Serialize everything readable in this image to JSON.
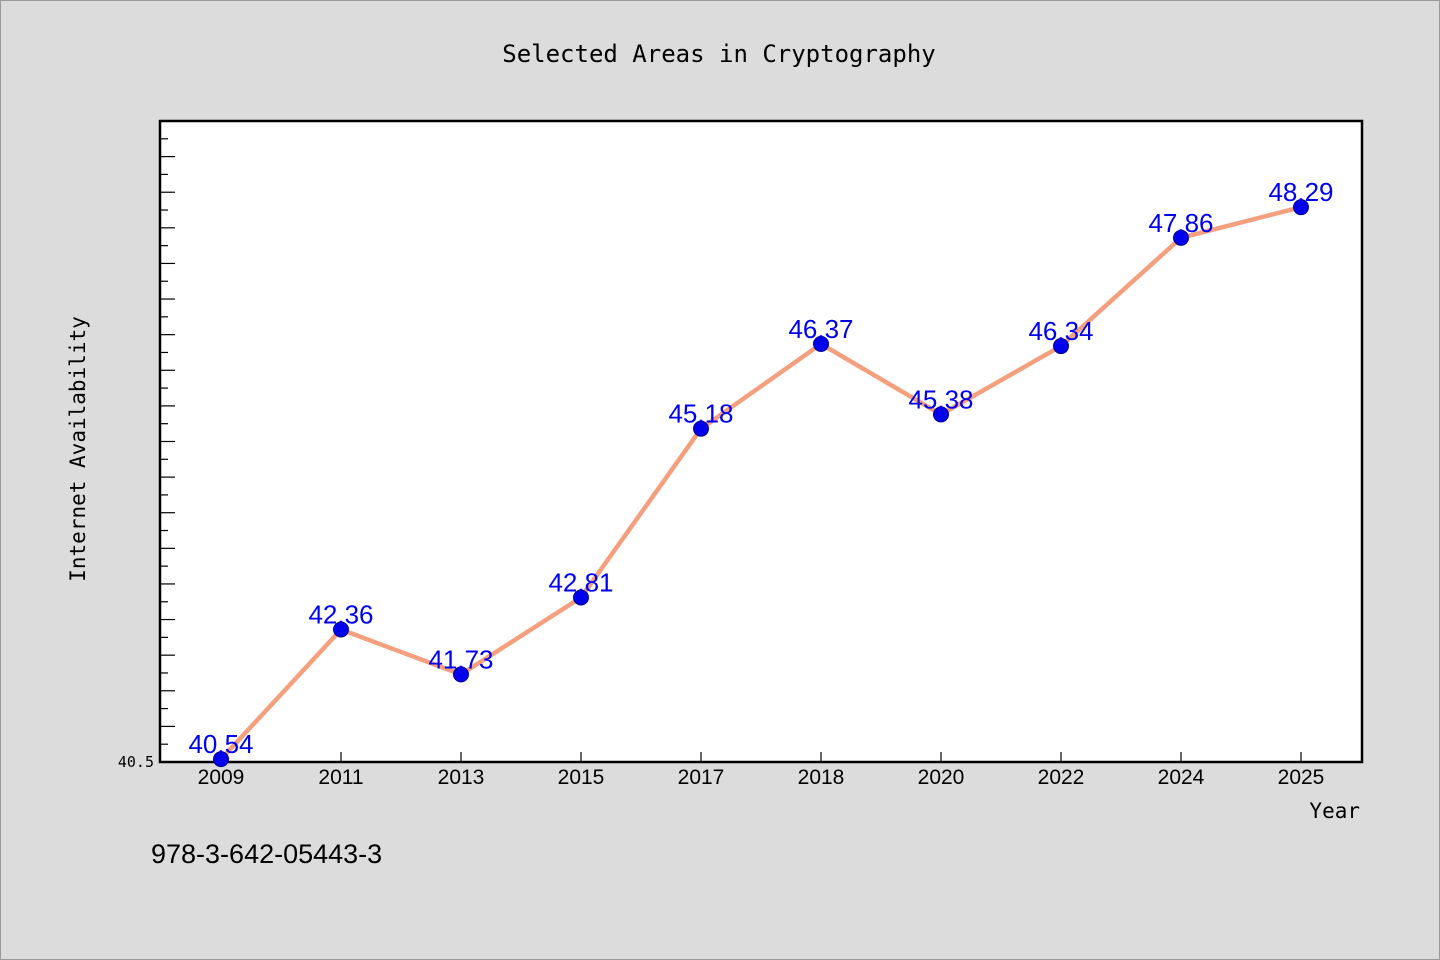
{
  "chart_data": {
    "type": "line",
    "title": "Selected Areas in Cryptography",
    "xlabel": "Year",
    "ylabel": "Internet Availability",
    "categories": [
      "2009",
      "2011",
      "2013",
      "2015",
      "2017",
      "2018",
      "2020",
      "2022",
      "2024",
      "2025"
    ],
    "series": [
      {
        "values": [
          40.54,
          42.36,
          41.73,
          42.81,
          45.18,
          46.37,
          45.38,
          46.34,
          47.86,
          48.29
        ],
        "labels": [
          "40.54",
          "42.36",
          "41.73",
          "42.81",
          "45.18",
          "46.37",
          "45.38",
          "46.34",
          "47.86",
          "48.29"
        ],
        "line_color": "#f4a07e",
        "marker_color": "#0000ee"
      }
    ],
    "ylim": [
      40.5,
      49.5
    ],
    "ytick_labels": [
      "40.5"
    ],
    "grid": false,
    "legend": "none"
  },
  "annotation": "978-3-642-05443-3",
  "colors": {
    "background": "#dcdcdc",
    "plot_background": "#ffffff",
    "label_color": "#0000ee",
    "line_color": "#f4a07e"
  }
}
